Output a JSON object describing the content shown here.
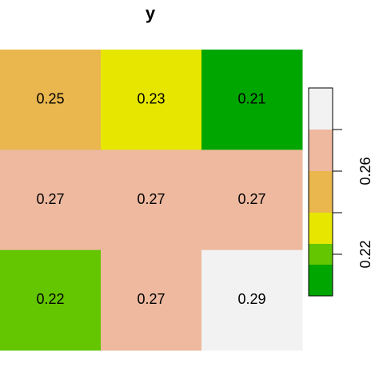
{
  "chart_data": {
    "type": "heatmap",
    "title": "y",
    "values": [
      [
        0.25,
        0.23,
        0.21
      ],
      [
        0.27,
        0.27,
        0.27
      ],
      [
        0.22,
        0.27,
        0.29
      ]
    ],
    "breaks": [
      0.2,
      0.215,
      0.225,
      0.24,
      0.26,
      0.28,
      0.3
    ],
    "colors": [
      "#00A600",
      "#63C600",
      "#E6E600",
      "#EAB64E",
      "#EEB99F",
      "#F2F2F2"
    ],
    "ylim": [
      0.2,
      0.3
    ],
    "yticks": [
      0.22,
      {
        "value": 0.24,
        "label": null
      },
      0.26,
      {
        "value": 0.28,
        "label": null
      }
    ]
  }
}
